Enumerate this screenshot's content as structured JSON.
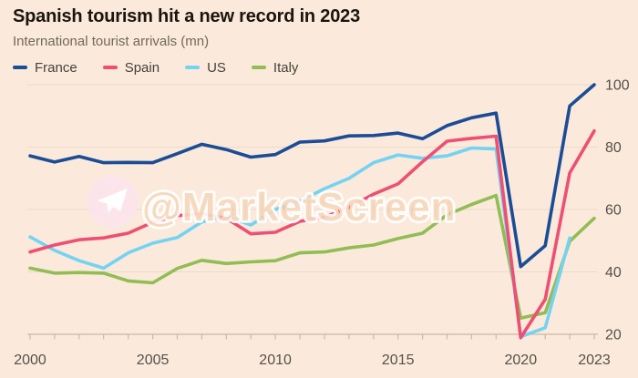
{
  "header": {
    "title": "Spanish tourism hit a new record in 2023",
    "subtitle": "International tourist arrivals (mn)"
  },
  "watermark": {
    "text": "@MarketScreen",
    "icon": "telegram-paper-plane-icon"
  },
  "colors": {
    "background": "#FBEADB",
    "title": "#1B150E",
    "subtitle": "#70675E",
    "legend_label": "#47413C",
    "axis_label": "#55504A",
    "axis_line": "#C8B9AB",
    "gridline": "#EBDACA",
    "france": "#1A4D96",
    "spain": "#ED4F75",
    "us": "#74D3F2",
    "italy": "#92BD54",
    "watermark_fill": "#F2C79E",
    "watermark_stroke": "#FFFFFF",
    "watermark_badge": "#FBE3EF"
  },
  "chart_data": {
    "type": "line",
    "title": "Spanish tourism hit a new record in 2023",
    "subtitle": "International tourist arrivals (mn)",
    "x": [
      2000,
      2001,
      2002,
      2003,
      2004,
      2005,
      2006,
      2007,
      2008,
      2009,
      2010,
      2011,
      2012,
      2013,
      2014,
      2015,
      2016,
      2017,
      2018,
      2019,
      2020,
      2021,
      2022,
      2023
    ],
    "series": [
      {
        "name": "France",
        "color": "#1A4D96",
        "values": [
          77.2,
          75.2,
          77.0,
          75.0,
          75.1,
          75.0,
          77.9,
          80.9,
          79.2,
          76.8,
          77.6,
          81.6,
          82.0,
          83.6,
          83.7,
          84.5,
          82.7,
          86.9,
          89.4,
          90.9,
          41.7,
          48.4,
          93.2,
          100.0
        ]
      },
      {
        "name": "Spain",
        "color": "#ED4F75",
        "values": [
          46.4,
          48.6,
          50.3,
          50.9,
          52.4,
          55.9,
          58.0,
          58.7,
          57.2,
          52.2,
          52.7,
          56.2,
          57.5,
          60.7,
          64.9,
          68.2,
          75.3,
          81.9,
          82.8,
          83.5,
          18.9,
          31.2,
          71.7,
          85.2
        ]
      },
      {
        "name": "US",
        "color": "#74D3F2",
        "values": [
          51.2,
          46.9,
          43.6,
          41.2,
          46.1,
          49.2,
          51.0,
          56.0,
          57.9,
          55.0,
          60.0,
          62.7,
          66.7,
          70.0,
          75.0,
          77.5,
          76.4,
          77.2,
          79.7,
          79.4,
          19.2,
          22.1,
          50.9,
          null
        ]
      },
      {
        "name": "Italy",
        "color": "#92BD54",
        "values": [
          41.2,
          39.6,
          39.8,
          39.6,
          37.1,
          36.5,
          41.1,
          43.7,
          42.7,
          43.2,
          43.6,
          46.1,
          46.4,
          47.7,
          48.6,
          50.7,
          52.4,
          58.3,
          61.6,
          64.5,
          25.2,
          26.9,
          49.8,
          57.2
        ]
      }
    ],
    "draw_order": [
      3,
      2,
      0,
      1
    ],
    "ylim": [
      20,
      100
    ],
    "yticks": [
      20,
      40,
      60,
      80,
      100
    ],
    "xtick_labels": [
      2000,
      2005,
      2010,
      2015,
      2020,
      2023
    ],
    "grid": true,
    "legend_position": "top",
    "y_axis_side": "right"
  }
}
